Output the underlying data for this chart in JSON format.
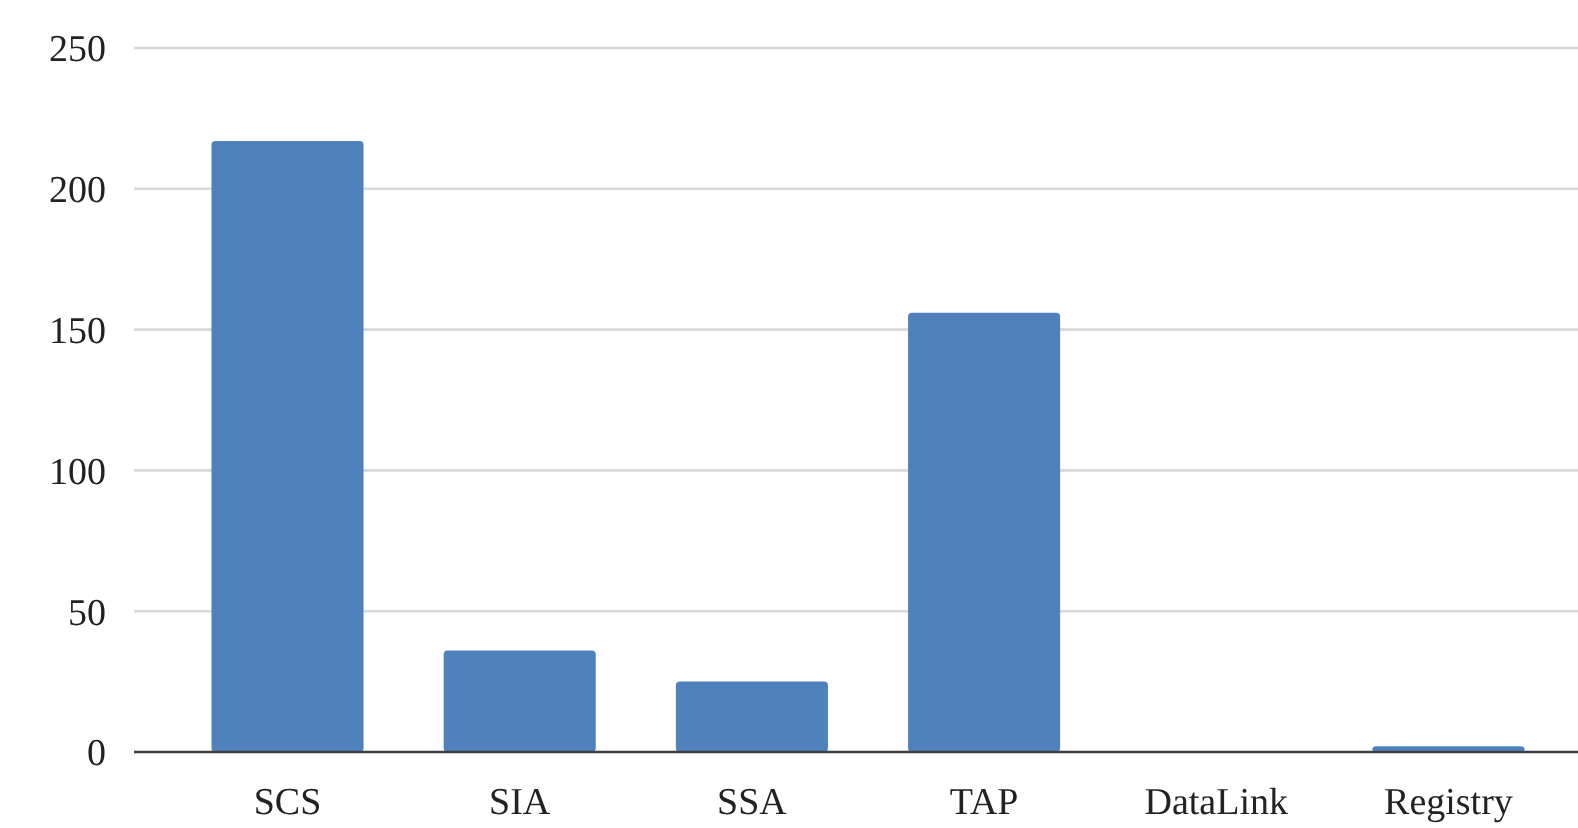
{
  "chart_data": {
    "type": "bar",
    "categories": [
      "SCS",
      "SIA",
      "SSA",
      "TAP",
      "DataLink",
      "Registry"
    ],
    "values": [
      217,
      36,
      25,
      156,
      0,
      2
    ],
    "color": "#4f81bd",
    "ylim": [
      0,
      250
    ],
    "yticks": [
      0,
      50,
      100,
      150,
      200,
      250
    ],
    "grid": "y"
  }
}
